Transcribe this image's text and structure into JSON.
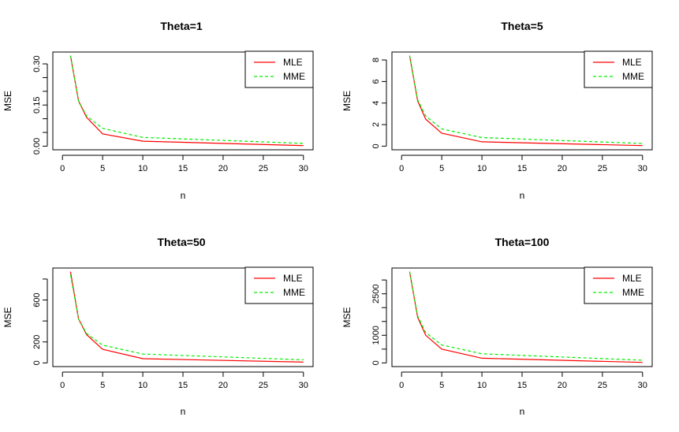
{
  "chart_data": [
    {
      "type": "line",
      "title": "Theta=1",
      "xlabel": "n",
      "ylabel": "MSE",
      "x": [
        1,
        2,
        3,
        5,
        10,
        30
      ],
      "xlim": [
        0,
        30
      ],
      "ylim": [
        0,
        0.33
      ],
      "xticks": [
        0,
        5,
        10,
        15,
        20,
        25,
        30
      ],
      "xtick_labels": [
        "0",
        "5",
        "10",
        "15",
        "20",
        "25",
        "30"
      ],
      "yticks": [
        0.0,
        0.05,
        0.1,
        0.15,
        0.2,
        0.25,
        0.3
      ],
      "ytick_labels": [
        "0.00",
        "",
        "",
        "0.15",
        "",
        "",
        "0.30"
      ],
      "series": [
        {
          "name": "MLE",
          "color": "#ff0000",
          "dash": "solid",
          "values": [
            0.33,
            0.165,
            0.105,
            0.045,
            0.018,
            0.002
          ]
        },
        {
          "name": "MME",
          "color": "#00ee00",
          "dash": "dashed",
          "values": [
            0.33,
            0.165,
            0.11,
            0.065,
            0.032,
            0.01
          ]
        }
      ],
      "legend": "top-right",
      "grid": false
    },
    {
      "type": "line",
      "title": "Theta=5",
      "xlabel": "n",
      "ylabel": "MSE",
      "x": [
        1,
        2,
        3,
        5,
        10,
        30
      ],
      "xlim": [
        0,
        30
      ],
      "ylim": [
        0,
        8.4
      ],
      "xticks": [
        0,
        5,
        10,
        15,
        20,
        25,
        30
      ],
      "xtick_labels": [
        "0",
        "5",
        "10",
        "15",
        "20",
        "25",
        "30"
      ],
      "yticks": [
        0,
        2,
        4,
        6,
        8
      ],
      "ytick_labels": [
        "0",
        "2",
        "4",
        "6",
        "8"
      ],
      "series": [
        {
          "name": "MLE",
          "color": "#ff0000",
          "dash": "solid",
          "values": [
            8.4,
            4.2,
            2.5,
            1.2,
            0.4,
            0.05
          ]
        },
        {
          "name": "MME",
          "color": "#00ee00",
          "dash": "dashed",
          "values": [
            8.4,
            4.3,
            2.8,
            1.6,
            0.8,
            0.25
          ]
        }
      ],
      "legend": "top-right",
      "grid": false
    },
    {
      "type": "line",
      "title": "Theta=50",
      "xlabel": "n",
      "ylabel": "MSE",
      "x": [
        1,
        2,
        3,
        5,
        10,
        30
      ],
      "xlim": [
        0,
        30
      ],
      "ylim": [
        0,
        870
      ],
      "xticks": [
        0,
        5,
        10,
        15,
        20,
        25,
        30
      ],
      "xtick_labels": [
        "0",
        "5",
        "10",
        "15",
        "20",
        "25",
        "30"
      ],
      "yticks": [
        0,
        200,
        400,
        600,
        800
      ],
      "ytick_labels": [
        "0",
        "200",
        "",
        "600",
        ""
      ],
      "series": [
        {
          "name": "MLE",
          "color": "#ff0000",
          "dash": "solid",
          "values": [
            870,
            420,
            270,
            130,
            40,
            8
          ]
        },
        {
          "name": "MME",
          "color": "#00ee00",
          "dash": "dashed",
          "values": [
            840,
            420,
            280,
            170,
            85,
            30
          ]
        }
      ],
      "legend": "top-right",
      "grid": false
    },
    {
      "type": "line",
      "title": "Theta=100",
      "xlabel": "n",
      "ylabel": "MSE",
      "x": [
        1,
        2,
        3,
        5,
        10,
        30
      ],
      "xlim": [
        0,
        30
      ],
      "ylim": [
        0,
        3300
      ],
      "xticks": [
        0,
        5,
        10,
        15,
        20,
        25,
        30
      ],
      "xtick_labels": [
        "0",
        "5",
        "10",
        "15",
        "20",
        "25",
        "30"
      ],
      "yticks": [
        0,
        500,
        1000,
        1500,
        2000,
        2500,
        3000
      ],
      "ytick_labels": [
        "0",
        "",
        "1000",
        "",
        "",
        "2500",
        ""
      ],
      "series": [
        {
          "name": "MLE",
          "color": "#ff0000",
          "dash": "solid",
          "values": [
            3300,
            1650,
            1000,
            500,
            170,
            20
          ]
        },
        {
          "name": "MME",
          "color": "#00ee00",
          "dash": "dashed",
          "values": [
            3300,
            1700,
            1100,
            650,
            330,
            100
          ]
        }
      ],
      "legend": "top-right",
      "grid": false
    }
  ]
}
